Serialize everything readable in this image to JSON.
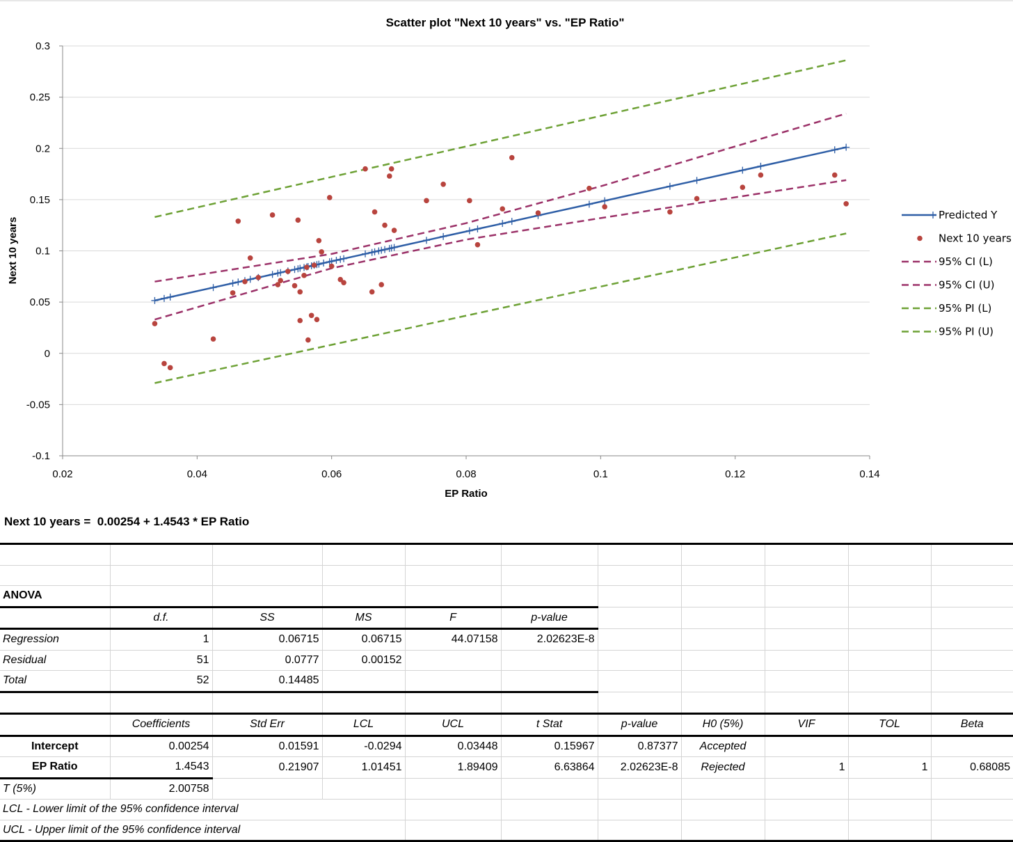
{
  "chart_data": {
    "type": "scatter",
    "title": "Scatter plot \"Next 10 years\" vs. \"EP Ratio\"",
    "xlabel": "EP Ratio",
    "ylabel": "Next 10 years",
    "xlim": [
      0.02,
      0.14
    ],
    "ylim": [
      -0.1,
      0.3
    ],
    "x_ticks": [
      "0.02",
      "0.04",
      "0.06",
      "0.08",
      "0.1",
      "0.12",
      "0.14"
    ],
    "y_ticks": [
      "0.3",
      "0.25",
      "0.2",
      "0.15",
      "0.1",
      "0.05",
      "0",
      "-0.05",
      "-0.1"
    ],
    "grid": "horizontal",
    "legend_position": "right",
    "series": [
      {
        "name": "Predicted Y",
        "type": "line",
        "color": "#2e5ea6",
        "marker": "plus",
        "points": [
          [
            0.0337,
            0.0515
          ],
          [
            0.0351,
            0.0536
          ],
          [
            0.036,
            0.0549
          ],
          [
            0.0424,
            0.0642
          ],
          [
            0.0453,
            0.0684
          ],
          [
            0.0461,
            0.0696
          ],
          [
            0.0471,
            0.071
          ],
          [
            0.0479,
            0.0722
          ],
          [
            0.0491,
            0.074
          ],
          [
            0.0512,
            0.077
          ],
          [
            0.052,
            0.0782
          ],
          [
            0.0524,
            0.0788
          ],
          [
            0.0535,
            0.0804
          ],
          [
            0.0545,
            0.0818
          ],
          [
            0.055,
            0.0825
          ],
          [
            0.0553,
            0.083
          ],
          [
            0.0559,
            0.0838
          ],
          [
            0.0563,
            0.0844
          ],
          [
            0.0565,
            0.0847
          ],
          [
            0.057,
            0.0854
          ],
          [
            0.0574,
            0.086
          ],
          [
            0.0578,
            0.0866
          ],
          [
            0.0581,
            0.087
          ],
          [
            0.0588,
            0.0881
          ],
          [
            0.0597,
            0.0894
          ],
          [
            0.06,
            0.0898
          ],
          [
            0.0607,
            0.0908
          ],
          [
            0.0613,
            0.0917
          ],
          [
            0.0618,
            0.0924
          ],
          [
            0.065,
            0.0971
          ],
          [
            0.066,
            0.0985
          ],
          [
            0.0664,
            0.0991
          ],
          [
            0.067,
            0.1
          ],
          [
            0.0674,
            0.1006
          ],
          [
            0.0679,
            0.1013
          ],
          [
            0.0686,
            0.1023
          ],
          [
            0.0689,
            0.1027
          ],
          [
            0.0693,
            0.1033
          ],
          [
            0.0741,
            0.1103
          ],
          [
            0.0766,
            0.114
          ],
          [
            0.0805,
            0.1196
          ],
          [
            0.0817,
            0.1214
          ],
          [
            0.0854,
            0.1267
          ],
          [
            0.0868,
            0.1288
          ],
          [
            0.0907,
            0.1345
          ],
          [
            0.0983,
            0.1455
          ],
          [
            0.1006,
            0.1489
          ],
          [
            0.1103,
            0.163
          ],
          [
            0.1143,
            0.1688
          ],
          [
            0.1211,
            0.1787
          ],
          [
            0.1238,
            0.1826
          ],
          [
            0.1348,
            0.1986
          ],
          [
            0.1365,
            0.2011
          ]
        ]
      },
      {
        "name": "Next 10 years",
        "type": "scatter",
        "color": "#b8443e",
        "marker": "circle",
        "points": [
          [
            0.0337,
            0.029
          ],
          [
            0.0351,
            -0.01
          ],
          [
            0.036,
            -0.014
          ],
          [
            0.0424,
            0.014
          ],
          [
            0.0453,
            0.059
          ],
          [
            0.0461,
            0.129
          ],
          [
            0.0471,
            0.07
          ],
          [
            0.0479,
            0.093
          ],
          [
            0.0491,
            0.074
          ],
          [
            0.0512,
            0.135
          ],
          [
            0.052,
            0.067
          ],
          [
            0.0524,
            0.071
          ],
          [
            0.0535,
            0.08
          ],
          [
            0.0545,
            0.066
          ],
          [
            0.055,
            0.13
          ],
          [
            0.0553,
            0.06
          ],
          [
            0.0553,
            0.032
          ],
          [
            0.0559,
            0.076
          ],
          [
            0.0563,
            0.084
          ],
          [
            0.0565,
            0.013
          ],
          [
            0.057,
            0.037
          ],
          [
            0.0574,
            0.086
          ],
          [
            0.0578,
            0.033
          ],
          [
            0.0581,
            0.11
          ],
          [
            0.0585,
            0.099
          ],
          [
            0.0597,
            0.152
          ],
          [
            0.06,
            0.085
          ],
          [
            0.0613,
            0.072
          ],
          [
            0.0618,
            0.069
          ],
          [
            0.065,
            0.18
          ],
          [
            0.066,
            0.06
          ],
          [
            0.0664,
            0.138
          ],
          [
            0.0674,
            0.067
          ],
          [
            0.0679,
            0.125
          ],
          [
            0.0686,
            0.173
          ],
          [
            0.0689,
            0.18
          ],
          [
            0.0693,
            0.12
          ],
          [
            0.0741,
            0.149
          ],
          [
            0.0766,
            0.165
          ],
          [
            0.0805,
            0.149
          ],
          [
            0.0817,
            0.106
          ],
          [
            0.0854,
            0.141
          ],
          [
            0.0868,
            0.191
          ],
          [
            0.0907,
            0.137
          ],
          [
            0.0983,
            0.161
          ],
          [
            0.1006,
            0.143
          ],
          [
            0.1103,
            0.138
          ],
          [
            0.1143,
            0.151
          ],
          [
            0.1211,
            0.162
          ],
          [
            0.1238,
            0.174
          ],
          [
            0.1348,
            0.174
          ],
          [
            0.1365,
            0.146
          ]
        ]
      },
      {
        "name": "95% CI (L)",
        "type": "line",
        "color": "#9b3168",
        "dash": true,
        "points": [
          [
            0.0337,
            0.033
          ],
          [
            0.06,
            0.083
          ],
          [
            0.08,
            0.111
          ],
          [
            0.1,
            0.132
          ],
          [
            0.1365,
            0.169
          ]
        ]
      },
      {
        "name": "95% CI (U)",
        "type": "line",
        "color": "#9b3168",
        "dash": true,
        "points": [
          [
            0.0337,
            0.07
          ],
          [
            0.06,
            0.097
          ],
          [
            0.08,
            0.127
          ],
          [
            0.1,
            0.163
          ],
          [
            0.1365,
            0.234
          ]
        ]
      },
      {
        "name": "95% PI (L)",
        "type": "line",
        "color": "#6da135",
        "dash": true,
        "points": [
          [
            0.0337,
            -0.029
          ],
          [
            0.1365,
            0.117
          ]
        ]
      },
      {
        "name": "95% PI (U)",
        "type": "line",
        "color": "#6da135",
        "dash": true,
        "points": [
          [
            0.0337,
            0.133
          ],
          [
            0.1365,
            0.286
          ]
        ]
      }
    ],
    "legend": [
      "Predicted Y",
      "Next 10 years",
      "95% CI (L)",
      "95% CI (U)",
      "95% PI (L)",
      "95% PI (U)"
    ]
  },
  "equation": "Next 10 years =  0.00254 + 1.4543 * EP Ratio",
  "anova": {
    "title": "ANOVA",
    "headers": [
      "",
      "d.f.",
      "SS",
      "MS",
      "F",
      "p-value"
    ],
    "rows": [
      [
        "Regression",
        "1",
        "0.06715",
        "0.06715",
        "44.07158",
        "2.02623E-8"
      ],
      [
        "Residual",
        "51",
        "0.0777",
        "0.00152",
        "",
        ""
      ],
      [
        "Total",
        "52",
        "0.14485",
        "",
        "",
        ""
      ]
    ]
  },
  "coefficients": {
    "headers": [
      "",
      "Coefficients",
      "Std Err",
      "LCL",
      "UCL",
      "t Stat",
      "p-value",
      "H0 (5%)",
      "VIF",
      "TOL",
      "Beta"
    ],
    "rows": [
      [
        "Intercept",
        "0.00254",
        "0.01591",
        "-0.0294",
        "0.03448",
        "0.15967",
        "0.87377",
        "Accepted",
        "",
        "",
        ""
      ],
      [
        "EP Ratio",
        "1.4543",
        "0.21907",
        "1.01451",
        "1.89409",
        "6.63864",
        "2.02623E-8",
        "Rejected",
        "1",
        "1",
        "0.68085"
      ]
    ],
    "t_label": "T (5%)",
    "t_value": "2.00758"
  },
  "notes": [
    "LCL - Lower limit of the 95% confidence interval",
    "UCL - Upper limit of the 95% confidence interval"
  ]
}
